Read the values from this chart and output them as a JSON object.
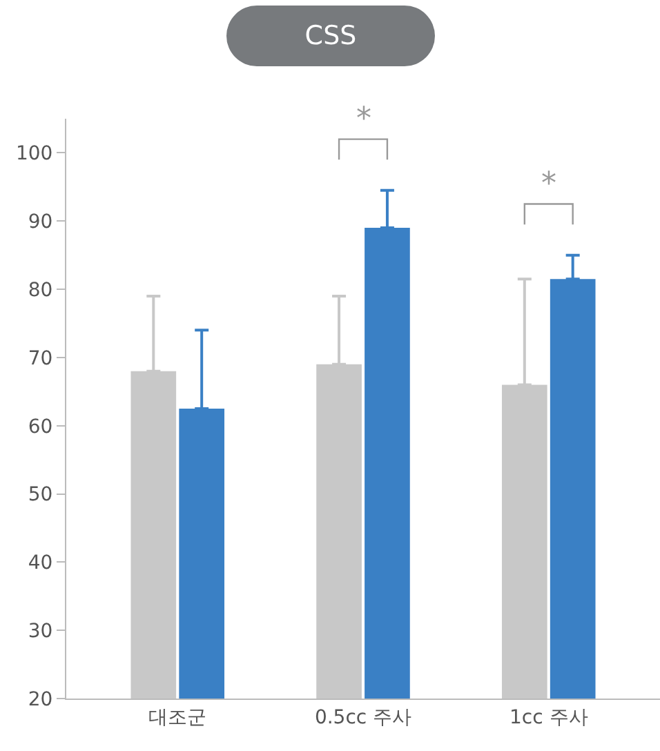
{
  "chart_data": {
    "type": "bar",
    "title": "CSS",
    "categories": [
      "대조군",
      "0.5cc 주사",
      "1cc 주사"
    ],
    "series": [
      {
        "color": "#c8c8c8",
        "values": [
          68,
          69,
          66
        ],
        "errors": [
          [
            68,
            79
          ],
          [
            69,
            79
          ],
          [
            66,
            81.5
          ]
        ]
      },
      {
        "color": "#3a80c5",
        "values": [
          62.5,
          89,
          81.5
        ],
        "errors": [
          [
            62.5,
            74
          ],
          [
            89,
            94.5
          ],
          [
            81.5,
            85
          ]
        ]
      }
    ],
    "ylim": [
      20,
      105
    ],
    "yticks": [
      20,
      30,
      40,
      50,
      60,
      70,
      80,
      90,
      100
    ],
    "annotations": [
      "*",
      "*"
    ],
    "grid": false
  }
}
